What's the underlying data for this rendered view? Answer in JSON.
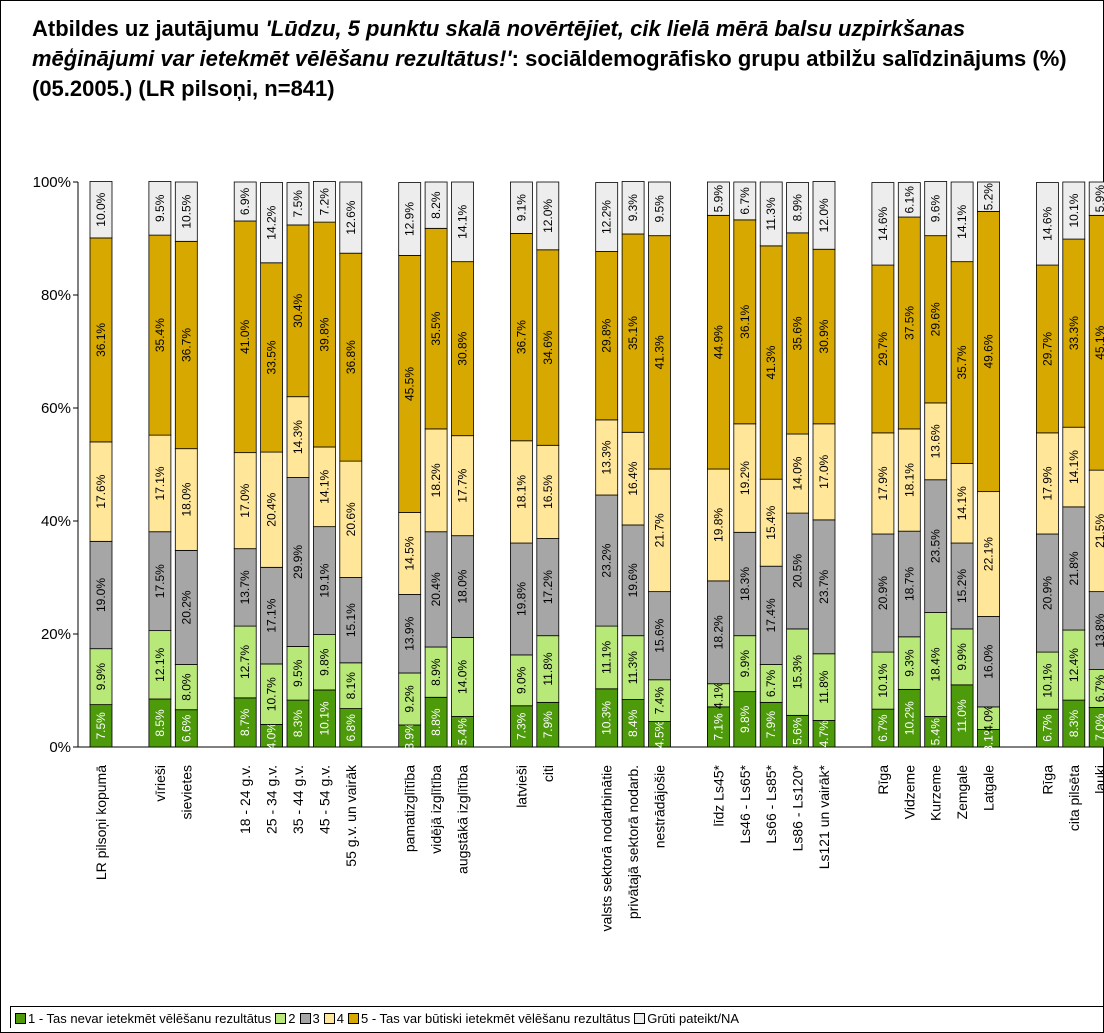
{
  "chart_data": {
    "type": "stacked-bar",
    "title": {
      "prefix": "Atbildes uz jautājumu ",
      "question": "'Lūdzu, 5 punktu skalā novērtējiet, cik lielā mērā balsu uzpirkšanas mēģinājumi var ietekmēt vēlēšanu rezultātus!'",
      "suffix": ": sociāldemogrāfisko grupu atbilžu salīdzinājums (%) (05.2005.) (LR pilsoņi, n=841)"
    },
    "ylim": [
      0,
      100
    ],
    "yticks": [
      "0%",
      "20%",
      "40%",
      "60%",
      "80%",
      "100%"
    ],
    "grid": false,
    "legend_position": "bottom",
    "series": [
      {
        "name": "1 - Tas nevar ietekmēt vēlēšanu rezultātus",
        "color": "#4d9a0a",
        "label_color": "#ffffff"
      },
      {
        "name": "2",
        "color": "#b8e878",
        "label_color": "#000000"
      },
      {
        "name": "3",
        "color": "#a6a6a6",
        "label_color": "#000000"
      },
      {
        "name": "4",
        "color": "#ffe699",
        "label_color": "#000000"
      },
      {
        "name": "5 - Tas var būtiski ietekmēt vēlēšanu rezultātus",
        "color": "#d6a800",
        "label_color": "#000000"
      },
      {
        "name": "Grūti pateikt/NA",
        "color": "#ededed",
        "label_color": "#000000"
      }
    ],
    "groups": [
      [
        {
          "category": "LR pilsoņi kopumā",
          "values": [
            7.5,
            9.9,
            19.0,
            17.6,
            36.1,
            10.0
          ]
        }
      ],
      [
        {
          "category": "vīrieši",
          "values": [
            8.5,
            12.1,
            17.5,
            17.1,
            35.4,
            9.5
          ]
        },
        {
          "category": "sievietes",
          "values": [
            6.6,
            8.0,
            20.2,
            18.0,
            36.7,
            10.5
          ]
        }
      ],
      [
        {
          "category": "18 - 24 g.v.",
          "values": [
            8.7,
            12.7,
            13.7,
            17.0,
            41.0,
            6.9
          ]
        },
        {
          "category": "25 - 34 g.v.",
          "values": [
            4.0,
            10.7,
            17.1,
            20.4,
            33.5,
            14.2
          ]
        },
        {
          "category": "35 - 44 g.v.",
          "values": [
            8.3,
            9.5,
            29.9,
            14.3,
            30.4,
            7.5
          ]
        },
        {
          "category": "45 - 54 g.v.",
          "values": [
            10.1,
            9.8,
            19.1,
            14.1,
            39.8,
            7.2
          ]
        },
        {
          "category": "55 g.v. un vairāk",
          "values": [
            6.8,
            8.1,
            15.1,
            20.6,
            36.8,
            12.6
          ]
        }
      ],
      [
        {
          "category": "pamatizglītība",
          "values": [
            3.9,
            9.2,
            13.9,
            14.5,
            45.5,
            12.9
          ]
        },
        {
          "category": "vidējā izglītība",
          "values": [
            8.8,
            8.9,
            20.4,
            18.2,
            35.5,
            8.2
          ]
        },
        {
          "category": "augstākā izglītība",
          "values": [
            5.4,
            14.0,
            18.0,
            17.7,
            30.8,
            14.1
          ]
        }
      ],
      [
        {
          "category": "latvieši",
          "values": [
            7.3,
            9.0,
            19.8,
            18.1,
            36.7,
            9.1
          ]
        },
        {
          "category": "citi",
          "values": [
            7.9,
            11.8,
            17.2,
            16.5,
            34.6,
            12.0
          ]
        }
      ],
      [
        {
          "category": "valsts sektorā nodarbinātie",
          "values": [
            10.3,
            11.1,
            23.2,
            13.3,
            29.8,
            12.2
          ]
        },
        {
          "category": "privātajā sektorā nodarb.",
          "values": [
            8.4,
            11.3,
            19.6,
            16.4,
            35.1,
            9.3
          ]
        },
        {
          "category": "nestrādājošie",
          "values": [
            4.5,
            7.4,
            15.6,
            21.7,
            41.3,
            9.5
          ]
        }
      ],
      [
        {
          "category": "līdz Ls45*",
          "values": [
            7.1,
            4.1,
            18.2,
            19.8,
            44.9,
            5.9
          ]
        },
        {
          "category": "Ls46 - Ls65*",
          "values": [
            9.8,
            9.9,
            18.3,
            19.2,
            36.1,
            6.7
          ]
        },
        {
          "category": "Ls66 - Ls85*",
          "values": [
            7.9,
            6.7,
            17.4,
            15.4,
            41.3,
            11.3
          ]
        },
        {
          "category": "Ls86 - Ls120*",
          "values": [
            5.6,
            15.3,
            20.5,
            14.0,
            35.6,
            8.9
          ]
        },
        {
          "category": "Ls121 un vairāk*",
          "values": [
            4.7,
            11.8,
            23.7,
            17.0,
            30.9,
            12.0
          ]
        }
      ],
      [
        {
          "category": "Rīga",
          "values": [
            6.7,
            10.1,
            20.9,
            17.9,
            29.7,
            14.6
          ]
        },
        {
          "category": "Vidzeme",
          "values": [
            10.2,
            9.3,
            18.7,
            18.1,
            37.5,
            6.1
          ]
        },
        {
          "category": "Kurzeme",
          "values": [
            5.4,
            18.4,
            23.5,
            13.6,
            29.6,
            9.6
          ]
        },
        {
          "category": "Zemgale",
          "values": [
            11.0,
            9.9,
            15.2,
            14.1,
            35.7,
            14.1
          ]
        },
        {
          "category": "Latgale",
          "values": [
            3.1,
            4.0,
            16.0,
            22.1,
            49.6,
            5.2
          ]
        }
      ],
      [
        {
          "category": "Rīga",
          "values": [
            6.7,
            10.1,
            20.9,
            17.9,
            29.7,
            14.6
          ]
        },
        {
          "category": "cita pilsēta",
          "values": [
            8.3,
            12.4,
            21.8,
            14.1,
            33.3,
            10.1
          ]
        },
        {
          "category": "lauki",
          "values": [
            7.0,
            6.7,
            13.8,
            21.5,
            45.1,
            5.9
          ]
        }
      ]
    ]
  }
}
